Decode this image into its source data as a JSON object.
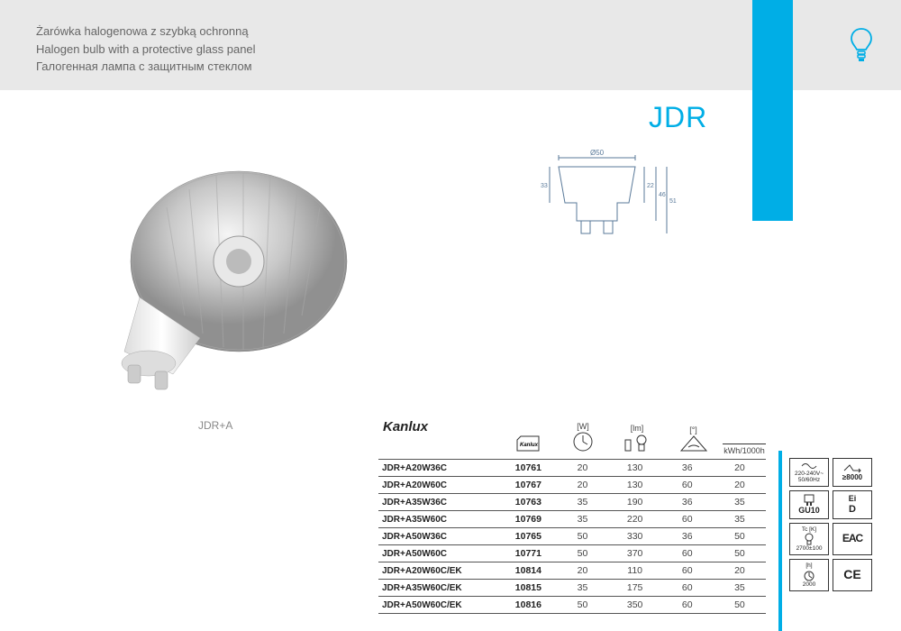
{
  "header": {
    "line1": "Żarówka halogenowa z szybką ochronną",
    "line2": "Halogen bulb with a protective glass panel",
    "line3": "Галогенная лампа с защитным стеклом"
  },
  "product": {
    "title": "JDR",
    "image_label": "JDR+A",
    "brand": "Kanlux",
    "dimensions": {
      "diameter": "Ø50",
      "h1": "33",
      "h2": "22",
      "h3": "46",
      "h4": "51"
    }
  },
  "columns": {
    "watt_unit": "[W]",
    "lumen_unit": "[lm]",
    "angle_unit": "[°]",
    "energy_unit": "kWh/1000h"
  },
  "rows": [
    {
      "name": "JDR+A20W36C",
      "code": "10761",
      "w": "20",
      "lm": "130",
      "ang": "36",
      "kwh": "20"
    },
    {
      "name": "JDR+A20W60C",
      "code": "10767",
      "w": "20",
      "lm": "130",
      "ang": "60",
      "kwh": "20"
    },
    {
      "name": "JDR+A35W36C",
      "code": "10763",
      "w": "35",
      "lm": "190",
      "ang": "36",
      "kwh": "35"
    },
    {
      "name": "JDR+A35W60C",
      "code": "10769",
      "w": "35",
      "lm": "220",
      "ang": "60",
      "kwh": "35"
    },
    {
      "name": "JDR+A50W36C",
      "code": "10765",
      "w": "50",
      "lm": "330",
      "ang": "36",
      "kwh": "50"
    },
    {
      "name": "JDR+A50W60C",
      "code": "10771",
      "w": "50",
      "lm": "370",
      "ang": "60",
      "kwh": "50"
    },
    {
      "name": "JDR+A20W60C/EK",
      "code": "10814",
      "w": "20",
      "lm": "110",
      "ang": "60",
      "kwh": "20"
    },
    {
      "name": "JDR+A35W60C/EK",
      "code": "10815",
      "w": "35",
      "lm": "175",
      "ang": "60",
      "kwh": "35"
    },
    {
      "name": "JDR+A50W60C/EK",
      "code": "10816",
      "w": "50",
      "lm": "350",
      "ang": "60",
      "kwh": "50"
    }
  ],
  "badges": {
    "voltage": "220-240V~\n50/60Hz",
    "switch_cycles": "≥8000",
    "socket": "GU10",
    "energy_class": "D",
    "energy_label": "Ei",
    "color_temp": "2700±100",
    "tc_label": "Tc [K]",
    "eac": "EAC",
    "lifetime": "2000",
    "h_label": "[h]",
    "ce": "CE"
  },
  "colors": {
    "cyan": "#00aee6",
    "header_bg": "#e8e8e8",
    "text_gray": "#666666",
    "rule": "#555555"
  }
}
